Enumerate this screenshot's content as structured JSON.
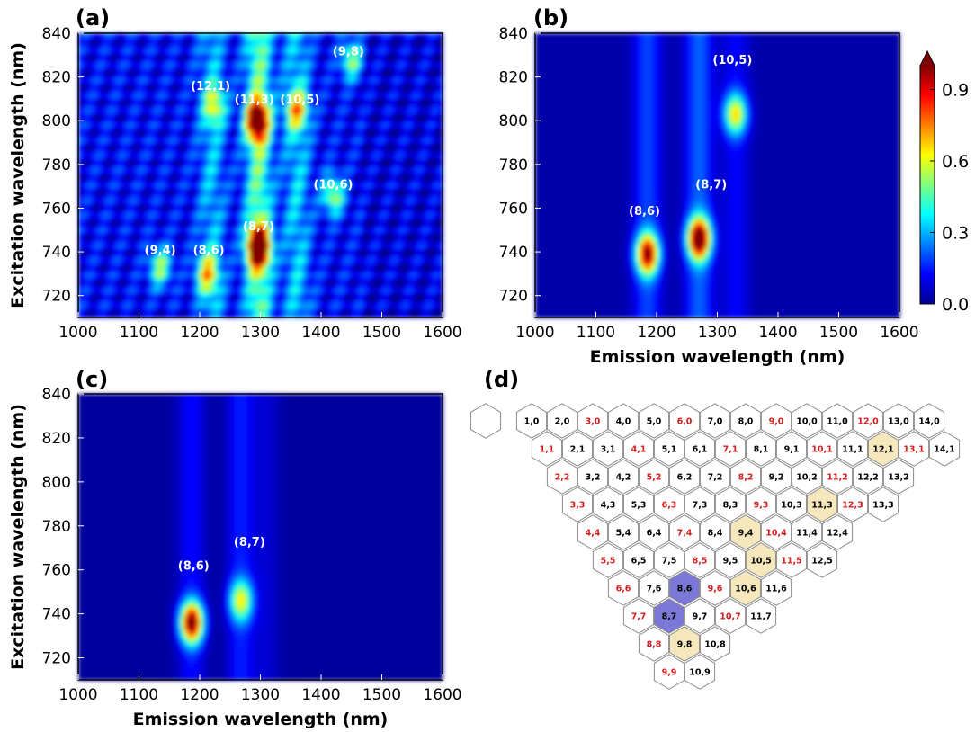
{
  "chart_data": [
    {
      "panel": "(a)",
      "type": "heatmap",
      "xlabel": "",
      "ylabel": "Excitation wavelength (nm)",
      "xlim": [
        1000,
        1600
      ],
      "ylim": [
        710,
        840
      ],
      "xticks": [
        "1000",
        "1100",
        "1200",
        "1300",
        "1400",
        "1500",
        "1600"
      ],
      "yticks": [
        "720",
        "740",
        "760",
        "780",
        "800",
        "820",
        "840"
      ],
      "background": 0.12,
      "peaks": [
        {
          "label": "(12,1)",
          "x": 1225,
          "y": 807,
          "intensity": 0.35,
          "lx": 1218,
          "ly": 814
        },
        {
          "label": "(11,3)",
          "x": 1295,
          "y": 800,
          "intensity": 0.85,
          "lx": 1290,
          "ly": 808
        },
        {
          "label": "(10,5)",
          "x": 1360,
          "y": 805,
          "intensity": 0.45,
          "lx": 1365,
          "ly": 808
        },
        {
          "label": "(9,8)",
          "x": 1450,
          "y": 828,
          "intensity": 0.38,
          "lx": 1445,
          "ly": 830
        },
        {
          "label": "(10,6)",
          "x": 1420,
          "y": 766,
          "intensity": 0.42,
          "lx": 1420,
          "ly": 769
        },
        {
          "label": "(8,7)",
          "x": 1297,
          "y": 742,
          "intensity": 1.0,
          "lx": 1297,
          "ly": 750
        },
        {
          "label": "(9,4)",
          "x": 1135,
          "y": 733,
          "intensity": 0.4,
          "lx": 1135,
          "ly": 739
        },
        {
          "label": "(8,6)",
          "x": 1212,
          "y": 730,
          "intensity": 0.45,
          "lx": 1215,
          "ly": 739
        }
      ],
      "bands": [
        {
          "x": 1297,
          "intensity": 0.35
        },
        {
          "x": 1220,
          "intensity": 0.18
        },
        {
          "x": 1360,
          "intensity": 0.2
        }
      ]
    },
    {
      "panel": "(b)",
      "type": "heatmap",
      "xlabel": "Emission wavelength (nm)",
      "ylabel": "",
      "xlim": [
        1000,
        1600
      ],
      "ylim": [
        710,
        840
      ],
      "xticks": [
        "1000",
        "1100",
        "1200",
        "1300",
        "1400",
        "1500",
        "1600"
      ],
      "yticks": [
        "720",
        "740",
        "760",
        "780",
        "800",
        "820",
        "840"
      ],
      "background": 0.04,
      "peaks": [
        {
          "label": "(8,6)",
          "x": 1185,
          "y": 739,
          "intensity": 0.85,
          "lx": 1180,
          "ly": 757
        },
        {
          "label": "(8,7)",
          "x": 1270,
          "y": 746,
          "intensity": 1.0,
          "lx": 1290,
          "ly": 769
        },
        {
          "label": "(10,5)",
          "x": 1330,
          "y": 803,
          "intensity": 0.55,
          "lx": 1325,
          "ly": 826
        }
      ],
      "bands": [
        {
          "x": 1185,
          "intensity": 0.15
        },
        {
          "x": 1270,
          "intensity": 0.18
        },
        {
          "x": 1330,
          "intensity": 0.08
        }
      ],
      "colorbar": {
        "ticks": [
          "0.0",
          "0.3",
          "0.6",
          "0.9"
        ],
        "range": [
          0.0,
          1.0
        ]
      }
    },
    {
      "panel": "(c)",
      "type": "heatmap",
      "xlabel": "Emission wavelength (nm)",
      "ylabel": "Excitation wavelength (nm)",
      "xlim": [
        1000,
        1600
      ],
      "ylim": [
        710,
        840
      ],
      "xticks": [
        "1000",
        "1100",
        "1200",
        "1300",
        "1400",
        "1500",
        "1600"
      ],
      "yticks": [
        "720",
        "740",
        "760",
        "780",
        "800",
        "820",
        "840"
      ],
      "background": 0.03,
      "peaks": [
        {
          "label": "(8,6)",
          "x": 1187,
          "y": 736,
          "intensity": 0.95,
          "lx": 1190,
          "ly": 760
        },
        {
          "label": "(8,7)",
          "x": 1268,
          "y": 746,
          "intensity": 0.5,
          "lx": 1282,
          "ly": 771
        }
      ],
      "bands": [
        {
          "x": 1187,
          "intensity": 0.1
        },
        {
          "x": 1268,
          "intensity": 0.12
        },
        {
          "x": 1310,
          "intensity": 0.05
        }
      ]
    },
    {
      "panel": "(d)",
      "type": "table",
      "rows": [
        [
          "1,0",
          "2,0",
          "3,0",
          "4,0",
          "5,0",
          "6,0",
          "7,0",
          "8,0",
          "9,0",
          "10,0",
          "11,0",
          "12,0",
          "13,0",
          "14,0"
        ],
        [
          "1,1",
          "2,1",
          "3,1",
          "4,1",
          "5,1",
          "6,1",
          "7,1",
          "8,1",
          "9,1",
          "10,1",
          "11,1",
          "12,1",
          "13,1",
          "14,1"
        ],
        [
          "2,2",
          "3,2",
          "4,2",
          "5,2",
          "6,2",
          "7,2",
          "8,2",
          "9,2",
          "10,2",
          "11,2",
          "12,2",
          "13,2"
        ],
        [
          "3,3",
          "4,3",
          "5,3",
          "6,3",
          "7,3",
          "8,3",
          "9,3",
          "10,3",
          "11,3",
          "12,3",
          "13,3"
        ],
        [
          "4,4",
          "5,4",
          "6,4",
          "7,4",
          "8,4",
          "9,4",
          "10,4",
          "11,4",
          "12,4"
        ],
        [
          "5,5",
          "6,5",
          "7,5",
          "8,5",
          "9,5",
          "10,5",
          "11,5",
          "12,5"
        ],
        [
          "6,6",
          "7,6",
          "8,6",
          "9,6",
          "10,6",
          "11,6"
        ],
        [
          "7,7",
          "8,7",
          "9,7",
          "10,7",
          "11,7"
        ],
        [
          "8,8",
          "9,8",
          "10,8"
        ],
        [
          "9,9",
          "10,9"
        ]
      ],
      "metallic": [
        "3,0",
        "6,0",
        "9,0",
        "12,0",
        "1,1",
        "4,1",
        "7,1",
        "10,1",
        "13,1",
        "2,2",
        "5,2",
        "8,2",
        "11,2",
        "3,3",
        "6,3",
        "9,3",
        "12,3",
        "4,4",
        "7,4",
        "10,4",
        "5,5",
        "8,5",
        "11,5",
        "6,6",
        "9,6",
        "7,7",
        "10,7",
        "8,8",
        "9,9"
      ],
      "highlight_yellow": [
        "12,1",
        "11,3",
        "9,4",
        "10,5",
        "10,6",
        "9,8"
      ],
      "highlight_blue": [
        "8,6",
        "8,7"
      ]
    }
  ],
  "colors": {
    "metallic_label": "#d42020",
    "semiconducting_label": "#000000",
    "yellow_fill": "#f6e8bc",
    "blue_fill": "#7b78d8",
    "hex_stroke": "#8c8c8c"
  }
}
